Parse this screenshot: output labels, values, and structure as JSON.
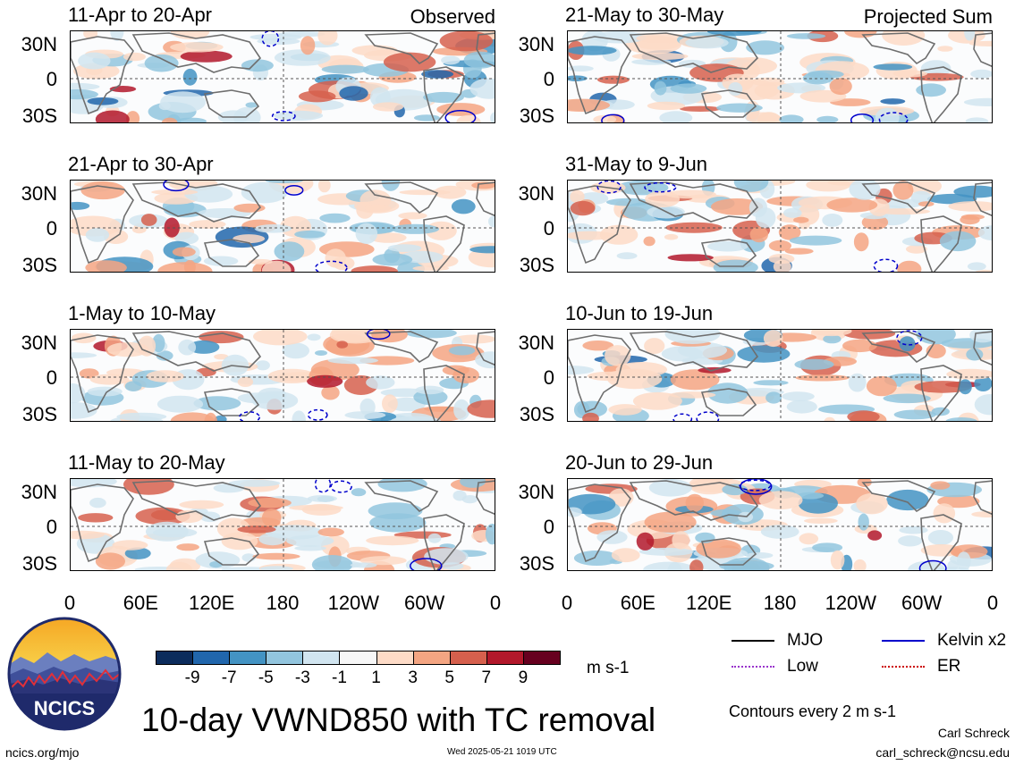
{
  "chart_data": {
    "type": "heatmap",
    "variable": "10-day VWND850 with TC removal",
    "units": "m s-1",
    "x_ticks": [
      "0",
      "60E",
      "120E",
      "180",
      "120W",
      "60W",
      "0"
    ],
    "y_ticks": [
      "30N",
      "0",
      "30S"
    ],
    "columns": [
      {
        "tag": "Observed",
        "panels": [
          "11-Apr to 20-Apr",
          "21-Apr to 30-Apr",
          "1-May to 10-May",
          "11-May to 20-May"
        ]
      },
      {
        "tag": "Projected Sum",
        "panels": [
          "21-May to 30-May",
          "31-May to 9-Jun",
          "10-Jun to 19-Jun",
          "20-Jun to 29-Jun"
        ]
      }
    ],
    "colorbar": {
      "ticks": [
        "-9",
        "-7",
        "-5",
        "-3",
        "-1",
        "1",
        "3",
        "5",
        "7",
        "9"
      ],
      "colors": [
        "#0c2c5c",
        "#2166ac",
        "#4393c3",
        "#92c5de",
        "#d1e5f0",
        "#f7f7f7",
        "#fddbc7",
        "#f4a582",
        "#d6604d",
        "#b2182b",
        "#67001f"
      ]
    },
    "legend": [
      {
        "label": "MJO",
        "color": "#000000"
      },
      {
        "label": "Kelvin x2",
        "color": "#0000cc"
      },
      {
        "label": "Low",
        "color": "#9933cc"
      },
      {
        "label": "ER",
        "color": "#cc0000"
      }
    ],
    "contours_note": "Contours every 2 m s-1"
  },
  "branding": {
    "logo_text": "NCICS",
    "url": "ncics.org/mjo",
    "timestamp": "Wed 2025-05-21 1019 UTC",
    "author": "Carl Schreck",
    "email": "carl_schreck@ncsu.edu"
  }
}
